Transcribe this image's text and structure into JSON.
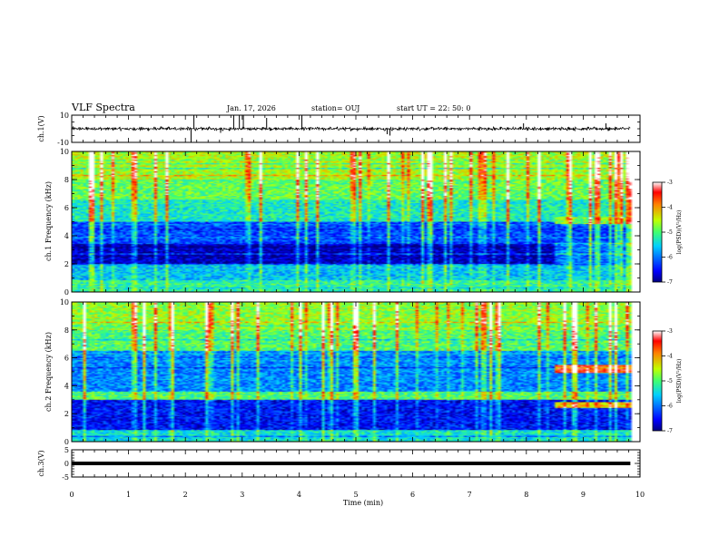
{
  "header": {
    "title": "VLF Spectra",
    "date": "Jan. 17, 2026",
    "station": "station= OUJ",
    "start": "start  UT =   22: 50: 0"
  },
  "chart_data": [
    {
      "type": "line",
      "name": "waveform-ch1",
      "ylabel": "ch.1(V)",
      "ylim": [
        -10,
        10
      ],
      "ytick_labels": [
        "10",
        "-10"
      ],
      "xlim": [
        0,
        10
      ],
      "data_end_min": 9.83,
      "baseline": 0,
      "noise_amplitude": 1.5,
      "spikes": [
        {
          "t": 2.1,
          "v": -10
        },
        {
          "t": 2.15,
          "v": 10
        },
        {
          "t": 2.62,
          "v": -3
        },
        {
          "t": 2.85,
          "v": 10
        },
        {
          "t": 2.95,
          "v": 10
        },
        {
          "t": 3.02,
          "v": 10
        },
        {
          "t": 3.43,
          "v": 8
        },
        {
          "t": 4.05,
          "v": 10
        },
        {
          "t": 5.55,
          "v": -4
        },
        {
          "t": 5.6,
          "v": -5
        },
        {
          "t": 7.95,
          "v": 4
        },
        {
          "t": 9.4,
          "v": 4
        }
      ]
    },
    {
      "type": "heatmap",
      "name": "spectrogram-ch1",
      "ylabel": "ch.1 Frequency (kHz)",
      "ylim": [
        0,
        10
      ],
      "ytick_labels": [
        "0",
        "2",
        "4",
        "6",
        "8",
        "10"
      ],
      "xlim": [
        0,
        10
      ],
      "data_end_min": 9.83,
      "zlim": [
        -7,
        -3
      ],
      "colorbar_label": "log(PSD)(V²/Hz)",
      "colorbar_ticks": [
        "-3",
        "-4",
        "-5",
        "-6",
        "-7"
      ],
      "regime_change_min": 8.5,
      "bands_khz": [
        {
          "f0": 0.0,
          "f1": 0.8,
          "level": -5.2
        },
        {
          "f0": 0.8,
          "f1": 2.0,
          "level": -5.6
        },
        {
          "f0": 2.0,
          "f1": 3.5,
          "level": -6.8
        },
        {
          "f0": 3.5,
          "f1": 5.0,
          "level": -6.2
        },
        {
          "f0": 5.0,
          "f1": 6.5,
          "level": -5.3
        },
        {
          "f0": 6.5,
          "f1": 8.0,
          "level": -4.9
        },
        {
          "f0": 8.0,
          "f1": 10.0,
          "level": -4.6
        }
      ],
      "late_bands_khz": [
        {
          "f0": 2.0,
          "f1": 3.5,
          "level": -6.0
        },
        {
          "f0": 4.8,
          "f1": 5.3,
          "level": -4.8
        }
      ]
    },
    {
      "type": "heatmap",
      "name": "spectrogram-ch2",
      "ylabel": "ch.2 Frequency (kHz)",
      "ylim": [
        0,
        10
      ],
      "ytick_labels": [
        "0",
        "2",
        "4",
        "6",
        "8",
        "10"
      ],
      "xlim": [
        0,
        10
      ],
      "data_end_min": 9.83,
      "zlim": [
        -7,
        -3
      ],
      "colorbar_label": "log(PSD)(V²/Hz)",
      "colorbar_ticks": [
        "-3",
        "-4",
        "-5",
        "-6",
        "-7"
      ],
      "regime_change_min": 8.5,
      "bands_khz": [
        {
          "f0": 0.0,
          "f1": 0.8,
          "level": -5.4
        },
        {
          "f0": 0.8,
          "f1": 3.0,
          "level": -6.5
        },
        {
          "f0": 3.0,
          "f1": 3.6,
          "level": -5.0
        },
        {
          "f0": 3.6,
          "f1": 6.5,
          "level": -5.9
        },
        {
          "f0": 6.5,
          "f1": 8.0,
          "level": -5.0
        },
        {
          "f0": 8.0,
          "f1": 10.0,
          "level": -4.7
        }
      ],
      "late_bands_khz": [
        {
          "f0": 2.4,
          "f1": 2.8,
          "level": -4.2
        },
        {
          "f0": 4.9,
          "f1": 5.5,
          "level": -3.6
        }
      ]
    },
    {
      "type": "line",
      "name": "waveform-ch3",
      "ylabel": "ch.3(V)",
      "ylim": [
        -5,
        5
      ],
      "ytick_labels": [
        "5",
        "0",
        "-5"
      ],
      "xlim": [
        0,
        10
      ],
      "data_end_min": 9.83,
      "baseline": 0
    }
  ],
  "xaxis": {
    "label": "Time (min)",
    "ticks": [
      "0",
      "1",
      "2",
      "3",
      "4",
      "5",
      "6",
      "7",
      "8",
      "9",
      "10"
    ]
  }
}
